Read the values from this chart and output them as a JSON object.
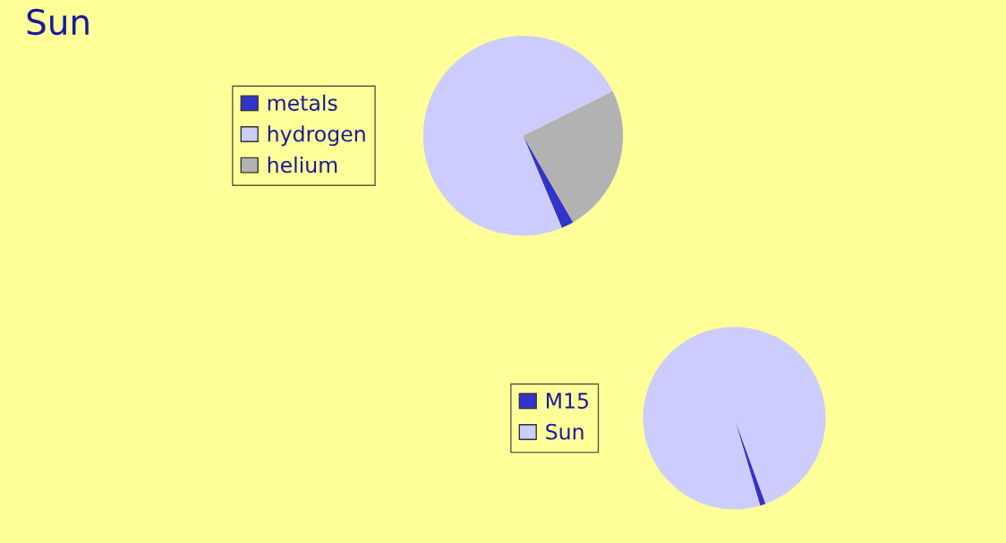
{
  "chart_data": [
    {
      "type": "pie",
      "title": "Sun",
      "categories": [
        "metals",
        "hydrogen",
        "helium"
      ],
      "values": [
        2,
        74,
        24
      ],
      "colors": [
        "#3333cc",
        "#ccccff",
        "#b2b2b2"
      ],
      "legend": "left"
    },
    {
      "type": "pie",
      "categories": [
        "M15",
        "Sun"
      ],
      "values": [
        1,
        99
      ],
      "colors": [
        "#3333cc",
        "#ccccff"
      ],
      "legend": "left"
    }
  ]
}
